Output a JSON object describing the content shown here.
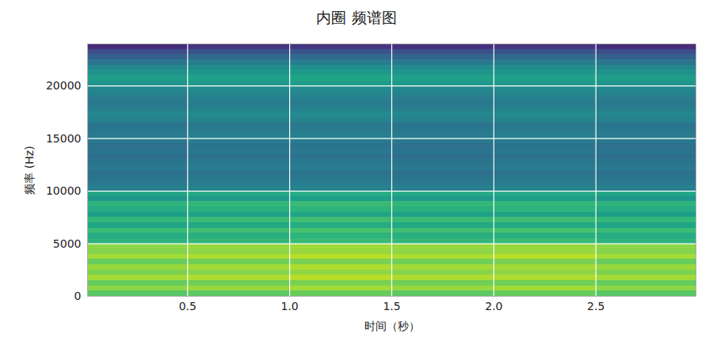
{
  "chart_data": {
    "type": "heatmap",
    "title": "内圈 频谱图",
    "x_label": "时间（秒）",
    "y_label": "频率 (Hz)",
    "xlim": [
      0.01,
      2.99
    ],
    "ylim": [
      0,
      24000
    ],
    "xticks": [
      0.5,
      {
        "value": 1,
        "label": "1.0"
      },
      1.5,
      {
        "value": 2,
        "label": "2.0"
      },
      2.5
    ],
    "yticks": [
      0,
      5000,
      10000,
      15000,
      20000
    ],
    "grid": true,
    "color": "viridis",
    "zlim": [
      30,
      95
    ],
    "x_edges": [
      0.01,
      0.5,
      1.0,
      1.5,
      2.0,
      2.5,
      2.99
    ],
    "y_edges": [
      0,
      500,
      1000,
      1500,
      2000,
      2500,
      3000,
      3500,
      4000,
      4500,
      5000,
      5500,
      6000,
      6500,
      7000,
      7500,
      8000,
      8500,
      9000,
      9500,
      10000,
      10500,
      11000,
      11500,
      12000,
      12500,
      13000,
      13500,
      14000,
      14500,
      15000,
      15500,
      16000,
      16500,
      17000,
      17500,
      18000,
      18500,
      19000,
      19500,
      20000,
      20500,
      21000,
      21500,
      22000,
      22500,
      23000,
      23500,
      24000
    ],
    "z": [
      [
        78,
        79,
        80,
        79,
        80,
        78
      ],
      [
        84,
        85,
        86,
        85,
        86,
        84
      ],
      [
        80,
        81,
        82,
        81,
        81,
        80
      ],
      [
        86,
        87,
        88,
        87,
        87,
        86
      ],
      [
        82,
        83,
        84,
        83,
        84,
        82
      ],
      [
        85,
        86,
        87,
        86,
        86,
        85
      ],
      [
        80,
        81,
        82,
        81,
        82,
        80
      ],
      [
        86,
        87,
        88,
        87,
        88,
        86
      ],
      [
        83,
        84,
        85,
        84,
        85,
        83
      ],
      [
        84,
        85,
        86,
        85,
        85,
        84
      ],
      [
        72,
        73,
        74,
        73,
        74,
        72
      ],
      [
        70,
        71,
        72,
        71,
        71,
        70
      ],
      [
        74,
        75,
        76,
        75,
        76,
        74
      ],
      [
        68,
        69,
        70,
        69,
        69,
        68
      ],
      [
        73,
        74,
        75,
        74,
        75,
        73
      ],
      [
        66,
        67,
        68,
        67,
        67,
        66
      ],
      [
        70,
        71,
        72,
        71,
        72,
        70
      ],
      [
        72,
        73,
        74,
        73,
        73,
        72
      ],
      [
        64,
        65,
        66,
        65,
        66,
        64
      ],
      [
        68,
        69,
        70,
        69,
        69,
        68
      ],
      [
        58,
        59,
        59,
        58,
        59,
        58
      ],
      [
        56,
        57,
        57,
        56,
        57,
        56
      ],
      [
        55,
        56,
        56,
        55,
        56,
        55
      ],
      [
        54,
        55,
        55,
        54,
        55,
        54
      ],
      [
        56,
        57,
        57,
        56,
        57,
        56
      ],
      [
        55,
        56,
        56,
        55,
        56,
        55
      ],
      [
        53,
        54,
        54,
        53,
        54,
        53
      ],
      [
        55,
        56,
        56,
        55,
        56,
        55
      ],
      [
        54,
        55,
        55,
        54,
        55,
        54
      ],
      [
        56,
        57,
        57,
        56,
        57,
        56
      ],
      [
        57,
        58,
        58,
        57,
        58,
        57
      ],
      [
        56,
        57,
        57,
        56,
        57,
        56
      ],
      [
        55,
        56,
        56,
        55,
        56,
        55
      ],
      [
        58,
        59,
        59,
        58,
        59,
        58
      ],
      [
        60,
        61,
        61,
        60,
        61,
        60
      ],
      [
        58,
        59,
        59,
        58,
        59,
        58
      ],
      [
        56,
        57,
        57,
        56,
        57,
        56
      ],
      [
        57,
        58,
        58,
        57,
        58,
        57
      ],
      [
        59,
        60,
        60,
        59,
        60,
        59
      ],
      [
        60,
        61,
        61,
        60,
        61,
        60
      ],
      [
        64,
        65,
        66,
        65,
        65,
        64
      ],
      [
        66,
        67,
        68,
        67,
        67,
        66
      ],
      [
        63,
        64,
        65,
        64,
        64,
        63
      ],
      [
        60,
        61,
        62,
        61,
        61,
        60
      ],
      [
        55,
        57,
        57,
        56,
        57,
        55
      ],
      [
        50,
        52,
        52,
        51,
        52,
        50
      ],
      [
        45,
        47,
        47,
        46,
        47,
        45
      ],
      [
        38,
        40,
        40,
        39,
        40,
        38
      ]
    ]
  }
}
